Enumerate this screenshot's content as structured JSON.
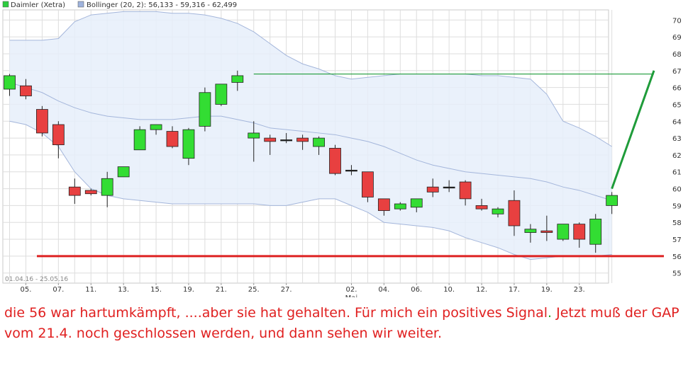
{
  "chart_data": {
    "type": "candlestick",
    "legend": [
      {
        "name": "Daimler (Xetra)",
        "color": "#2ecc40"
      },
      {
        "name": "Bollinger (20, 2): 56,133 - 59,316 - 62,499",
        "color": "#9fb3dd"
      }
    ],
    "date_range_label": "01.04.16 - 25.05.16",
    "y_ticks": [
      55,
      56,
      57,
      58,
      59,
      60,
      61,
      62,
      63,
      64,
      65,
      66,
      67,
      68,
      69,
      70
    ],
    "ylim": [
      54.4,
      70.6
    ],
    "x_ticks": [
      {
        "label": "05.",
        "i": 1
      },
      {
        "label": "07.",
        "i": 3
      },
      {
        "label": "11.",
        "i": 5
      },
      {
        "label": "13.",
        "i": 7
      },
      {
        "label": "15.",
        "i": 9
      },
      {
        "label": "19.",
        "i": 11
      },
      {
        "label": "21.",
        "i": 13
      },
      {
        "label": "25.",
        "i": 15
      },
      {
        "label": "27.",
        "i": 17
      },
      {
        "label": "02.",
        "i": 21
      },
      {
        "label": "04.",
        "i": 23
      },
      {
        "label": "06.",
        "i": 25
      },
      {
        "label": "10.",
        "i": 27
      },
      {
        "label": "12.",
        "i": 29
      },
      {
        "label": "17.",
        "i": 31
      },
      {
        "label": "19.",
        "i": 33
      },
      {
        "label": "23.",
        "i": 35
      }
    ],
    "month_label": {
      "label": "Mai",
      "i": 21
    },
    "candles": [
      {
        "o": 65.9,
        "h": 66.8,
        "l": 65.5,
        "c": 66.7
      },
      {
        "o": 66.1,
        "h": 66.5,
        "l": 65.3,
        "c": 65.5
      },
      {
        "o": 64.7,
        "h": 64.9,
        "l": 63.1,
        "c": 63.3
      },
      {
        "o": 63.8,
        "h": 64.0,
        "l": 61.8,
        "c": 62.6
      },
      {
        "o": 60.1,
        "h": 60.6,
        "l": 59.1,
        "c": 59.6
      },
      {
        "o": 59.9,
        "h": 60.0,
        "l": 59.6,
        "c": 59.7
      },
      {
        "o": 59.6,
        "h": 61.0,
        "l": 58.9,
        "c": 60.6
      },
      {
        "o": 60.7,
        "h": 61.3,
        "l": 60.7,
        "c": 61.3
      },
      {
        "o": 62.3,
        "h": 63.7,
        "l": 62.3,
        "c": 63.5
      },
      {
        "o": 63.5,
        "h": 63.8,
        "l": 63.2,
        "c": 63.8
      },
      {
        "o": 63.4,
        "h": 63.7,
        "l": 62.4,
        "c": 62.5
      },
      {
        "o": 61.8,
        "h": 63.6,
        "l": 61.4,
        "c": 63.5
      },
      {
        "o": 63.7,
        "h": 66.0,
        "l": 63.4,
        "c": 65.7
      },
      {
        "o": 65.0,
        "h": 66.2,
        "l": 64.9,
        "c": 66.2
      },
      {
        "o": 66.3,
        "h": 67.0,
        "l": 65.8,
        "c": 66.7
      },
      {
        "o": 63.0,
        "h": 64.0,
        "l": 61.6,
        "c": 63.3
      },
      {
        "o": 63.0,
        "h": 63.2,
        "l": 62.0,
        "c": 62.8
      },
      {
        "o": 62.9,
        "h": 63.3,
        "l": 62.7,
        "c": 62.9
      },
      {
        "o": 63.0,
        "h": 63.2,
        "l": 62.3,
        "c": 62.8
      },
      {
        "o": 62.5,
        "h": 63.1,
        "l": 62.0,
        "c": 63.0
      },
      {
        "o": 62.4,
        "h": 62.6,
        "l": 60.8,
        "c": 60.9
      },
      {
        "o": 61.1,
        "h": 61.4,
        "l": 60.8,
        "c": 61.1
      },
      {
        "o": 61.0,
        "h": 61.0,
        "l": 59.2,
        "c": 59.5
      },
      {
        "o": 59.4,
        "h": 59.4,
        "l": 58.4,
        "c": 58.7
      },
      {
        "o": 58.8,
        "h": 59.2,
        "l": 58.7,
        "c": 59.1
      },
      {
        "o": 58.9,
        "h": 59.4,
        "l": 58.6,
        "c": 59.4
      },
      {
        "o": 60.1,
        "h": 60.6,
        "l": 59.5,
        "c": 59.8
      },
      {
        "o": 60.1,
        "h": 60.5,
        "l": 59.8,
        "c": 60.1
      },
      {
        "o": 60.4,
        "h": 60.5,
        "l": 59.0,
        "c": 59.4
      },
      {
        "o": 59.0,
        "h": 59.4,
        "l": 58.7,
        "c": 58.8
      },
      {
        "o": 58.5,
        "h": 58.9,
        "l": 58.3,
        "c": 58.8
      },
      {
        "o": 59.3,
        "h": 59.9,
        "l": 57.2,
        "c": 57.8
      },
      {
        "o": 57.4,
        "h": 57.9,
        "l": 56.8,
        "c": 57.6
      },
      {
        "o": 57.5,
        "h": 58.4,
        "l": 56.9,
        "c": 57.4
      },
      {
        "o": 57.0,
        "h": 57.9,
        "l": 56.9,
        "c": 57.9
      },
      {
        "o": 57.9,
        "h": 58.0,
        "l": 56.5,
        "c": 57.0
      },
      {
        "o": 56.7,
        "h": 58.5,
        "l": 56.2,
        "c": 58.2
      },
      {
        "o": 59.0,
        "h": 59.8,
        "l": 58.5,
        "c": 59.6
      }
    ],
    "bollinger": {
      "upper": [
        68.8,
        68.8,
        68.8,
        68.9,
        69.9,
        70.3,
        70.4,
        70.5,
        70.5,
        70.5,
        70.4,
        70.4,
        70.3,
        70.1,
        69.8,
        69.3,
        68.6,
        67.9,
        67.4,
        67.1,
        66.7,
        66.5,
        66.6,
        66.7,
        66.8,
        66.8,
        66.8,
        66.8,
        66.8,
        66.7,
        66.7,
        66.6,
        66.5,
        65.6,
        64.0,
        63.6,
        63.1,
        62.5
      ],
      "middle": [
        66.3,
        66.0,
        65.7,
        65.2,
        64.8,
        64.5,
        64.3,
        64.2,
        64.1,
        64.1,
        64.1,
        64.2,
        64.3,
        64.3,
        64.1,
        63.9,
        63.6,
        63.5,
        63.4,
        63.3,
        63.2,
        63.0,
        62.8,
        62.5,
        62.1,
        61.7,
        61.4,
        61.2,
        61.0,
        60.9,
        60.8,
        60.7,
        60.6,
        60.4,
        60.1,
        59.9,
        59.6,
        59.3
      ],
      "lower": [
        64.0,
        63.8,
        63.3,
        62.5,
        61.0,
        60.0,
        59.6,
        59.4,
        59.3,
        59.2,
        59.1,
        59.1,
        59.1,
        59.1,
        59.1,
        59.1,
        59.0,
        59.0,
        59.2,
        59.4,
        59.4,
        59.0,
        58.6,
        58.0,
        57.9,
        57.8,
        57.7,
        57.5,
        57.1,
        56.8,
        56.5,
        56.1,
        55.8,
        55.9,
        56.0,
        56.0,
        56.0,
        56.1
      ]
    },
    "support_line": {
      "value": 56.0,
      "color": "#dd2222"
    },
    "gap_line": {
      "value": 66.8,
      "from_i": 15,
      "color": "#1f9c3a"
    },
    "projection_line": {
      "from_i": 37,
      "from_value": 60.0,
      "to_value": 67.0,
      "color": "#1f9c3a"
    },
    "colors": {
      "up": "#33dd33",
      "down": "#e84040",
      "band_fill": "#e6eefa",
      "band_line": "#a4b6db",
      "grid": "#dddddd"
    }
  },
  "comment": {
    "part1": "die 56 war hartumkämpft, ....aber sie hat gehalten. Für mich ein positives Signal",
    "dot": ".",
    "part2": " Jetzt muß der GAP vom 21.4. noch geschlossen werden, und dann sehen wir weiter.",
    "color": "#e02020",
    "dot_color": "#22aa22"
  }
}
